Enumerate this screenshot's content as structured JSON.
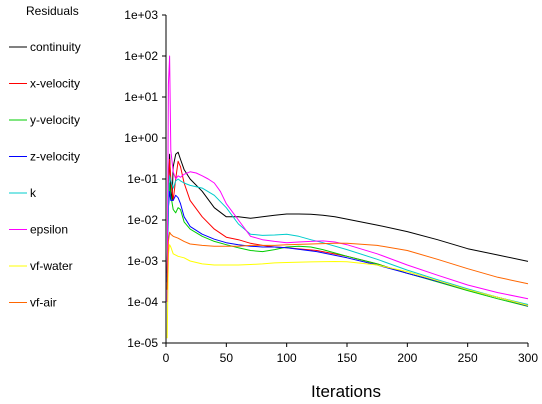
{
  "chart_data": {
    "type": "line",
    "title": "",
    "xlabel": "Iterations",
    "ylabel": "",
    "legend_title": "Residuals",
    "legend_position": "left",
    "grid": false,
    "y_scale": "log",
    "xlim": [
      0,
      300
    ],
    "ylim": [
      1e-05,
      1000
    ],
    "x_ticks": [
      0,
      50,
      100,
      150,
      200,
      250,
      300
    ],
    "x_tick_labels": [
      "0",
      "50",
      "100",
      "150",
      "200",
      "250",
      "300"
    ],
    "y_ticks": [
      1e-05,
      0.0001,
      0.001,
      0.01,
      0.1,
      1,
      10,
      100,
      1000
    ],
    "y_tick_labels": [
      "1e-05",
      "1e-04",
      "1e-03",
      "1e-02",
      "1e-01",
      "1e+00",
      "1e+01",
      "1e+02",
      "1e+03"
    ],
    "series": [
      {
        "name": "continuity",
        "color": "#000000",
        "points": [
          [
            1,
            0.0005
          ],
          [
            2,
            0.05
          ],
          [
            3,
            0.4
          ],
          [
            4,
            0.05
          ],
          [
            5,
            0.03
          ],
          [
            6,
            0.2
          ],
          [
            8,
            0.4
          ],
          [
            10,
            0.45
          ],
          [
            12,
            0.3
          ],
          [
            15,
            0.17
          ],
          [
            20,
            0.1
          ],
          [
            30,
            0.05
          ],
          [
            40,
            0.02
          ],
          [
            50,
            0.012
          ],
          [
            60,
            0.012
          ],
          [
            70,
            0.011
          ],
          [
            80,
            0.012
          ],
          [
            90,
            0.013
          ],
          [
            100,
            0.014
          ],
          [
            110,
            0.014
          ],
          [
            120,
            0.0138
          ],
          [
            130,
            0.013
          ],
          [
            140,
            0.012
          ],
          [
            150,
            0.0105
          ],
          [
            175,
            0.0075
          ],
          [
            200,
            0.0052
          ],
          [
            225,
            0.0033
          ],
          [
            250,
            0.002
          ],
          [
            275,
            0.0014
          ],
          [
            300,
            0.00098
          ]
        ]
      },
      {
        "name": "x-velocity",
        "color": "#ff0000",
        "points": [
          [
            1,
            0.0004
          ],
          [
            2,
            0.05
          ],
          [
            3,
            0.3
          ],
          [
            4,
            0.1
          ],
          [
            6,
            0.03
          ],
          [
            8,
            0.1
          ],
          [
            10,
            0.27
          ],
          [
            12,
            0.2
          ],
          [
            15,
            0.08
          ],
          [
            20,
            0.03
          ],
          [
            30,
            0.012
          ],
          [
            40,
            0.006
          ],
          [
            50,
            0.0038
          ],
          [
            60,
            0.0033
          ],
          [
            70,
            0.0027
          ],
          [
            80,
            0.0024
          ],
          [
            90,
            0.0022
          ],
          [
            100,
            0.0021
          ],
          [
            125,
            0.0018
          ],
          [
            150,
            0.0013
          ],
          [
            175,
            0.00085
          ],
          [
            200,
            0.0005
          ],
          [
            225,
            0.00032
          ],
          [
            250,
            0.0002
          ],
          [
            275,
            0.00013
          ],
          [
            300,
            8.5e-05
          ]
        ]
      },
      {
        "name": "y-velocity",
        "color": "#00cc00",
        "points": [
          [
            1,
            0.0003
          ],
          [
            2,
            0.02
          ],
          [
            3,
            0.08
          ],
          [
            4,
            0.04
          ],
          [
            6,
            0.018
          ],
          [
            8,
            0.015
          ],
          [
            10,
            0.02
          ],
          [
            12,
            0.018
          ],
          [
            15,
            0.009
          ],
          [
            20,
            0.006
          ],
          [
            30,
            0.004
          ],
          [
            40,
            0.003
          ],
          [
            50,
            0.0025
          ],
          [
            60,
            0.0021
          ],
          [
            70,
            0.0018
          ],
          [
            80,
            0.0017
          ],
          [
            90,
            0.0019
          ],
          [
            100,
            0.0022
          ],
          [
            110,
            0.0023
          ],
          [
            120,
            0.0022
          ],
          [
            130,
            0.0019
          ],
          [
            150,
            0.0013
          ],
          [
            175,
            0.00085
          ],
          [
            200,
            0.0005
          ],
          [
            225,
            0.00031
          ],
          [
            250,
            0.00019
          ],
          [
            275,
            0.00012
          ],
          [
            300,
            7.8e-05
          ]
        ]
      },
      {
        "name": "z-velocity",
        "color": "#0000ff",
        "points": [
          [
            1,
            0.0003
          ],
          [
            2,
            0.02
          ],
          [
            3,
            0.05
          ],
          [
            4,
            0.03
          ],
          [
            6,
            0.03
          ],
          [
            8,
            0.04
          ],
          [
            10,
            0.035
          ],
          [
            12,
            0.025
          ],
          [
            15,
            0.012
          ],
          [
            20,
            0.007
          ],
          [
            30,
            0.0045
          ],
          [
            40,
            0.0034
          ],
          [
            50,
            0.0028
          ],
          [
            60,
            0.0025
          ],
          [
            70,
            0.0023
          ],
          [
            80,
            0.0022
          ],
          [
            90,
            0.0022
          ],
          [
            100,
            0.0021
          ],
          [
            125,
            0.0017
          ],
          [
            150,
            0.0012
          ],
          [
            175,
            0.0008
          ],
          [
            200,
            0.0005
          ],
          [
            225,
            0.00032
          ],
          [
            250,
            0.0002
          ],
          [
            275,
            0.00013
          ],
          [
            300,
            8e-05
          ]
        ]
      },
      {
        "name": "k",
        "color": "#00cccc",
        "points": [
          [
            1,
            0.0002
          ],
          [
            2,
            0.04
          ],
          [
            3,
            0.12
          ],
          [
            4,
            0.09
          ],
          [
            6,
            0.06
          ],
          [
            8,
            0.09
          ],
          [
            10,
            0.1
          ],
          [
            12,
            0.09
          ],
          [
            15,
            0.08
          ],
          [
            20,
            0.07
          ],
          [
            30,
            0.06
          ],
          [
            40,
            0.04
          ],
          [
            50,
            0.02
          ],
          [
            60,
            0.008
          ],
          [
            70,
            0.0045
          ],
          [
            80,
            0.0042
          ],
          [
            90,
            0.0043
          ],
          [
            100,
            0.0045
          ],
          [
            110,
            0.004
          ],
          [
            120,
            0.0033
          ],
          [
            130,
            0.0028
          ],
          [
            150,
            0.0019
          ],
          [
            175,
            0.0011
          ],
          [
            200,
            0.0006
          ],
          [
            225,
            0.00035
          ],
          [
            250,
            0.00021
          ],
          [
            275,
            0.00013
          ],
          [
            300,
            8.7e-05
          ]
        ]
      },
      {
        "name": "epsilon",
        "color": "#ff00ff",
        "points": [
          [
            1,
            0.0001
          ],
          [
            2,
            20
          ],
          [
            3,
            100
          ],
          [
            4,
            0.5
          ],
          [
            6,
            0.15
          ],
          [
            8,
            0.1
          ],
          [
            10,
            0.12
          ],
          [
            12,
            0.11
          ],
          [
            15,
            0.13
          ],
          [
            20,
            0.15
          ],
          [
            25,
            0.14
          ],
          [
            30,
            0.12
          ],
          [
            35,
            0.1
          ],
          [
            40,
            0.08
          ],
          [
            45,
            0.05
          ],
          [
            50,
            0.025
          ],
          [
            60,
            0.01
          ],
          [
            70,
            0.004
          ],
          [
            80,
            0.0033
          ],
          [
            90,
            0.003
          ],
          [
            100,
            0.0028
          ],
          [
            110,
            0.0029
          ],
          [
            120,
            0.003
          ],
          [
            130,
            0.0031
          ],
          [
            140,
            0.0029
          ],
          [
            150,
            0.0025
          ],
          [
            175,
            0.0015
          ],
          [
            200,
            0.0008
          ],
          [
            225,
            0.00045
          ],
          [
            250,
            0.00026
          ],
          [
            275,
            0.00017
          ],
          [
            300,
            0.00012
          ]
        ]
      },
      {
        "name": "vf-water",
        "color": "#ffff00",
        "points": [
          [
            1,
            1.3e-05
          ],
          [
            2,
            0.0015
          ],
          [
            3,
            0.0025
          ],
          [
            4,
            0.0022
          ],
          [
            6,
            0.0015
          ],
          [
            10,
            0.0013
          ],
          [
            15,
            0.0012
          ],
          [
            20,
            0.001
          ],
          [
            30,
            0.00085
          ],
          [
            40,
            0.0008
          ],
          [
            50,
            0.0008
          ],
          [
            60,
            0.0008
          ],
          [
            70,
            0.00082
          ],
          [
            80,
            0.00085
          ],
          [
            90,
            0.0009
          ],
          [
            100,
            0.00092
          ],
          [
            120,
            0.00095
          ],
          [
            140,
            0.00097
          ],
          [
            150,
            0.00096
          ],
          [
            175,
            0.0008
          ],
          [
            200,
            0.00055
          ],
          [
            225,
            0.00033
          ],
          [
            250,
            0.0002
          ],
          [
            275,
            0.00013
          ],
          [
            300,
            8.2e-05
          ]
        ]
      },
      {
        "name": "vf-air",
        "color": "#ff6600",
        "points": [
          [
            1,
            0.0002
          ],
          [
            2,
            0.003
          ],
          [
            3,
            0.005
          ],
          [
            4,
            0.0045
          ],
          [
            6,
            0.004
          ],
          [
            10,
            0.0036
          ],
          [
            15,
            0.003
          ],
          [
            20,
            0.0026
          ],
          [
            30,
            0.0024
          ],
          [
            40,
            0.0023
          ],
          [
            50,
            0.0023
          ],
          [
            60,
            0.0023
          ],
          [
            70,
            0.0024
          ],
          [
            80,
            0.0024
          ],
          [
            90,
            0.0024
          ],
          [
            100,
            0.0025
          ],
          [
            120,
            0.0026
          ],
          [
            140,
            0.0027
          ],
          [
            150,
            0.0027
          ],
          [
            175,
            0.0024
          ],
          [
            200,
            0.0018
          ],
          [
            225,
            0.0011
          ],
          [
            250,
            0.00065
          ],
          [
            275,
            0.0004
          ],
          [
            300,
            0.00028
          ]
        ]
      }
    ]
  }
}
